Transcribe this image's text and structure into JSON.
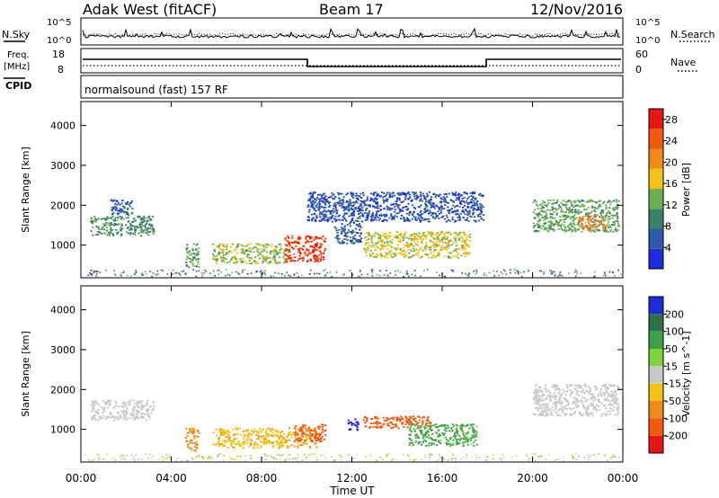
{
  "header": {
    "station": "Adak West (fitACF)",
    "beam": "Beam 17",
    "date": "12/Nov/2016"
  },
  "panels": {
    "nsky_label": "N.Sky",
    "nsearch_label": "N.Search",
    "nsky_ticks": [
      "10^5",
      "10^0"
    ],
    "nsearch_ticks": [
      "10^5",
      "10^0"
    ],
    "freq_label_1": "Freq.",
    "freq_label_2": "[MHz]",
    "freq_ticks": [
      "18",
      "8"
    ],
    "nave_label": "Nave",
    "nave_ticks": [
      "60",
      "0"
    ],
    "cpid_label": "CPID",
    "cpid_text": "normalsound (fast) 157 RF"
  },
  "chart_data": [
    {
      "type": "heatmap",
      "title": "",
      "xlabel": "Time UT",
      "ylabel": "Slant Range [km]",
      "x_ticks": [
        "00:00",
        "04:00",
        "08:00",
        "12:00",
        "16:00",
        "20:00",
        "00:00"
      ],
      "x_range_hours": [
        0,
        24
      ],
      "y_ticks": [
        1000,
        2000,
        3000,
        4000
      ],
      "ylim": [
        180,
        4600
      ],
      "colorbar": {
        "label": "Power [dB]",
        "ticks": [
          4,
          8,
          12,
          16,
          20,
          24,
          28
        ],
        "range": [
          0,
          30
        ],
        "colors": [
          "#1f2bd6",
          "#2c5aa8",
          "#3d8068",
          "#6fae55",
          "#f2c219",
          "#f08a1c",
          "#ef5a12",
          "#e41616"
        ]
      },
      "regions": [
        {
          "t0": 0.4,
          "t1": 3.2,
          "r0": 1250,
          "r1": 1750,
          "level": 10
        },
        {
          "t0": 1.3,
          "t1": 2.3,
          "r0": 1750,
          "r1": 2150,
          "level": 6
        },
        {
          "t0": 4.6,
          "t1": 5.2,
          "r0": 450,
          "r1": 1050,
          "level": 12
        },
        {
          "t0": 5.8,
          "t1": 9.2,
          "r0": 550,
          "r1": 1050,
          "level": 14
        },
        {
          "t0": 9.0,
          "t1": 10.8,
          "r0": 600,
          "r1": 1250,
          "level": 26
        },
        {
          "t0": 11.2,
          "t1": 12.4,
          "r0": 1050,
          "r1": 1600,
          "level": 6
        },
        {
          "t0": 12.5,
          "t1": 17.2,
          "r0": 700,
          "r1": 1350,
          "level": 16
        },
        {
          "t0": 10.0,
          "t1": 17.8,
          "r0": 1600,
          "r1": 2350,
          "level": 5
        },
        {
          "t0": 20.0,
          "t1": 23.8,
          "r0": 1350,
          "r1": 2150,
          "level": 12
        },
        {
          "t0": 22.0,
          "t1": 23.2,
          "r0": 1400,
          "r1": 1750,
          "level": 22
        }
      ]
    },
    {
      "type": "heatmap",
      "title": "",
      "xlabel": "Time UT",
      "ylabel": "Slant Range [km]",
      "x_ticks": [
        "00:00",
        "04:00",
        "08:00",
        "12:00",
        "16:00",
        "20:00",
        "00:00"
      ],
      "x_range_hours": [
        0,
        24
      ],
      "y_ticks": [
        1000,
        2000,
        3000,
        4000
      ],
      "ylim": [
        180,
        4600
      ],
      "colorbar": {
        "label": "Velocity [m s^-1]",
        "ticks": [
          200,
          100,
          50,
          15,
          -15,
          -50,
          -100,
          -200
        ],
        "colors": [
          "#1f2bd6",
          "#2f6f4a",
          "#3da048",
          "#7fd33a",
          "#c8c8c8",
          "#f2c219",
          "#f08a1c",
          "#ef5a12",
          "#e41616"
        ]
      },
      "regions": [
        {
          "t0": 0.4,
          "t1": 3.2,
          "r0": 1250,
          "r1": 1750,
          "vel": 0
        },
        {
          "t0": 4.6,
          "t1": 5.2,
          "r0": 450,
          "r1": 1050,
          "vel": -60
        },
        {
          "t0": 5.8,
          "t1": 10.4,
          "r0": 550,
          "r1": 1050,
          "vel": -40
        },
        {
          "t0": 9.4,
          "t1": 10.8,
          "r0": 700,
          "r1": 1150,
          "vel": -120
        },
        {
          "t0": 11.8,
          "t1": 12.3,
          "r0": 1000,
          "r1": 1300,
          "vel": 220
        },
        {
          "t0": 12.4,
          "t1": 15.5,
          "r0": 1050,
          "r1": 1350,
          "vel": -180
        },
        {
          "t0": 14.5,
          "t1": 17.5,
          "r0": 600,
          "r1": 1150,
          "vel": 60
        },
        {
          "t0": 20.0,
          "t1": 23.8,
          "r0": 1350,
          "r1": 2150,
          "vel": 0
        }
      ]
    }
  ]
}
